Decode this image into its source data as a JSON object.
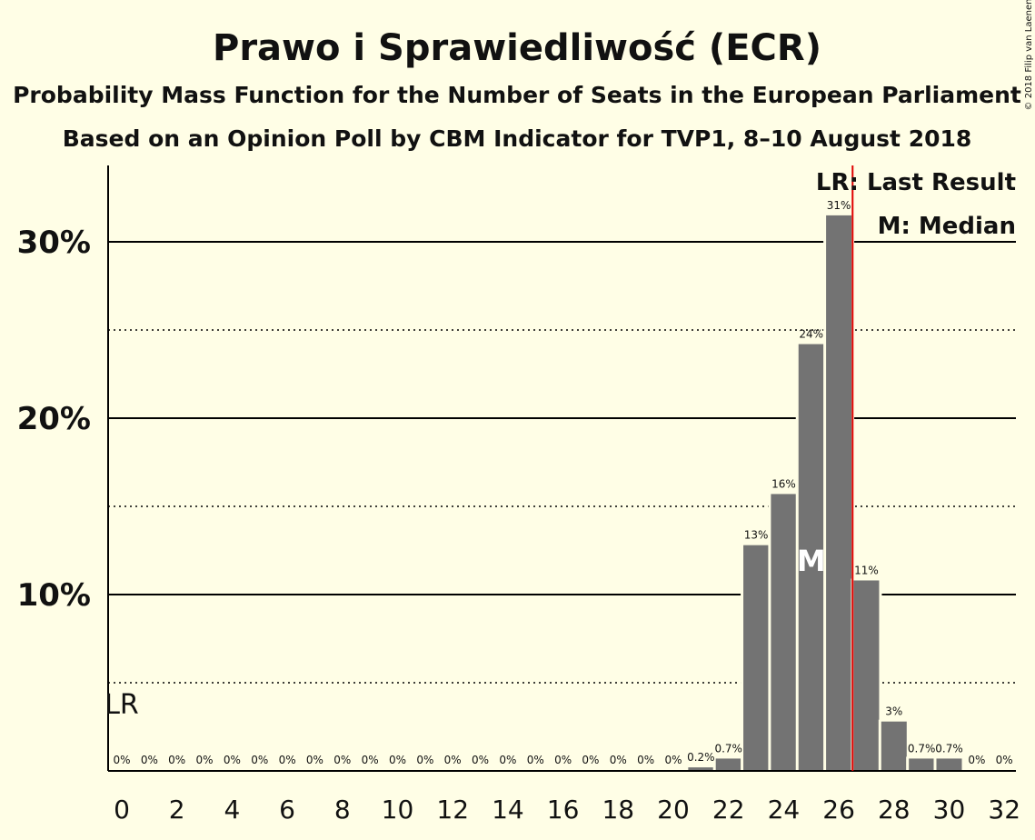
{
  "chart_data": {
    "type": "bar",
    "title": "Prawo i Sprawiedliwość (ECR)",
    "subtitle": "Probability Mass Function for the Number of Seats in the European Parliament",
    "subtitle2": "Based on an Opinion Poll by CBM Indicator for TVP1, 8–10 August 2018",
    "copyright": "© 2018 Filip van Laenen",
    "x": [
      0,
      1,
      2,
      3,
      4,
      5,
      6,
      7,
      8,
      9,
      10,
      11,
      12,
      13,
      14,
      15,
      16,
      17,
      18,
      19,
      20,
      21,
      22,
      23,
      24,
      25,
      26,
      27,
      28,
      29,
      30,
      31,
      32
    ],
    "values": [
      0,
      0,
      0,
      0,
      0,
      0,
      0,
      0,
      0,
      0,
      0,
      0,
      0,
      0,
      0,
      0,
      0,
      0,
      0,
      0,
      0,
      0.2,
      0.7,
      12.8,
      15.7,
      24.2,
      31.5,
      10.8,
      2.8,
      0.7,
      0.7,
      0,
      0
    ],
    "bar_labels": [
      "0%",
      "0%",
      "0%",
      "0%",
      "0%",
      "0%",
      "0%",
      "0%",
      "0%",
      "0%",
      "0%",
      "0%",
      "0%",
      "0%",
      "0%",
      "0%",
      "0%",
      "0%",
      "0%",
      "0%",
      "0%",
      "0.2%",
      "0.7%",
      "13%",
      "16%",
      "24%",
      "31%",
      "11%",
      "3%",
      "0.7%",
      "0.7%",
      "0%",
      "0%"
    ],
    "x_ticks": [
      "0",
      "2",
      "4",
      "6",
      "8",
      "10",
      "12",
      "14",
      "16",
      "18",
      "20",
      "22",
      "24",
      "26",
      "28",
      "30",
      "32"
    ],
    "y_ticks": [
      "10%",
      "20%",
      "30%"
    ],
    "ylim": [
      0,
      34
    ],
    "y_solid_gridlines": [
      10,
      20,
      30
    ],
    "y_dotted_gridlines": [
      5,
      15,
      25
    ],
    "last_result": 26.5,
    "last_result_label": "LR",
    "median": 25,
    "median_label": "M",
    "legend": [
      "LR: Last Result",
      "M: Median"
    ],
    "legend_placement": "top-right",
    "colors": {
      "bar": "#737373",
      "last_result_line": "#E00000",
      "background": "#FFFEE6",
      "grid": "#000000"
    }
  }
}
